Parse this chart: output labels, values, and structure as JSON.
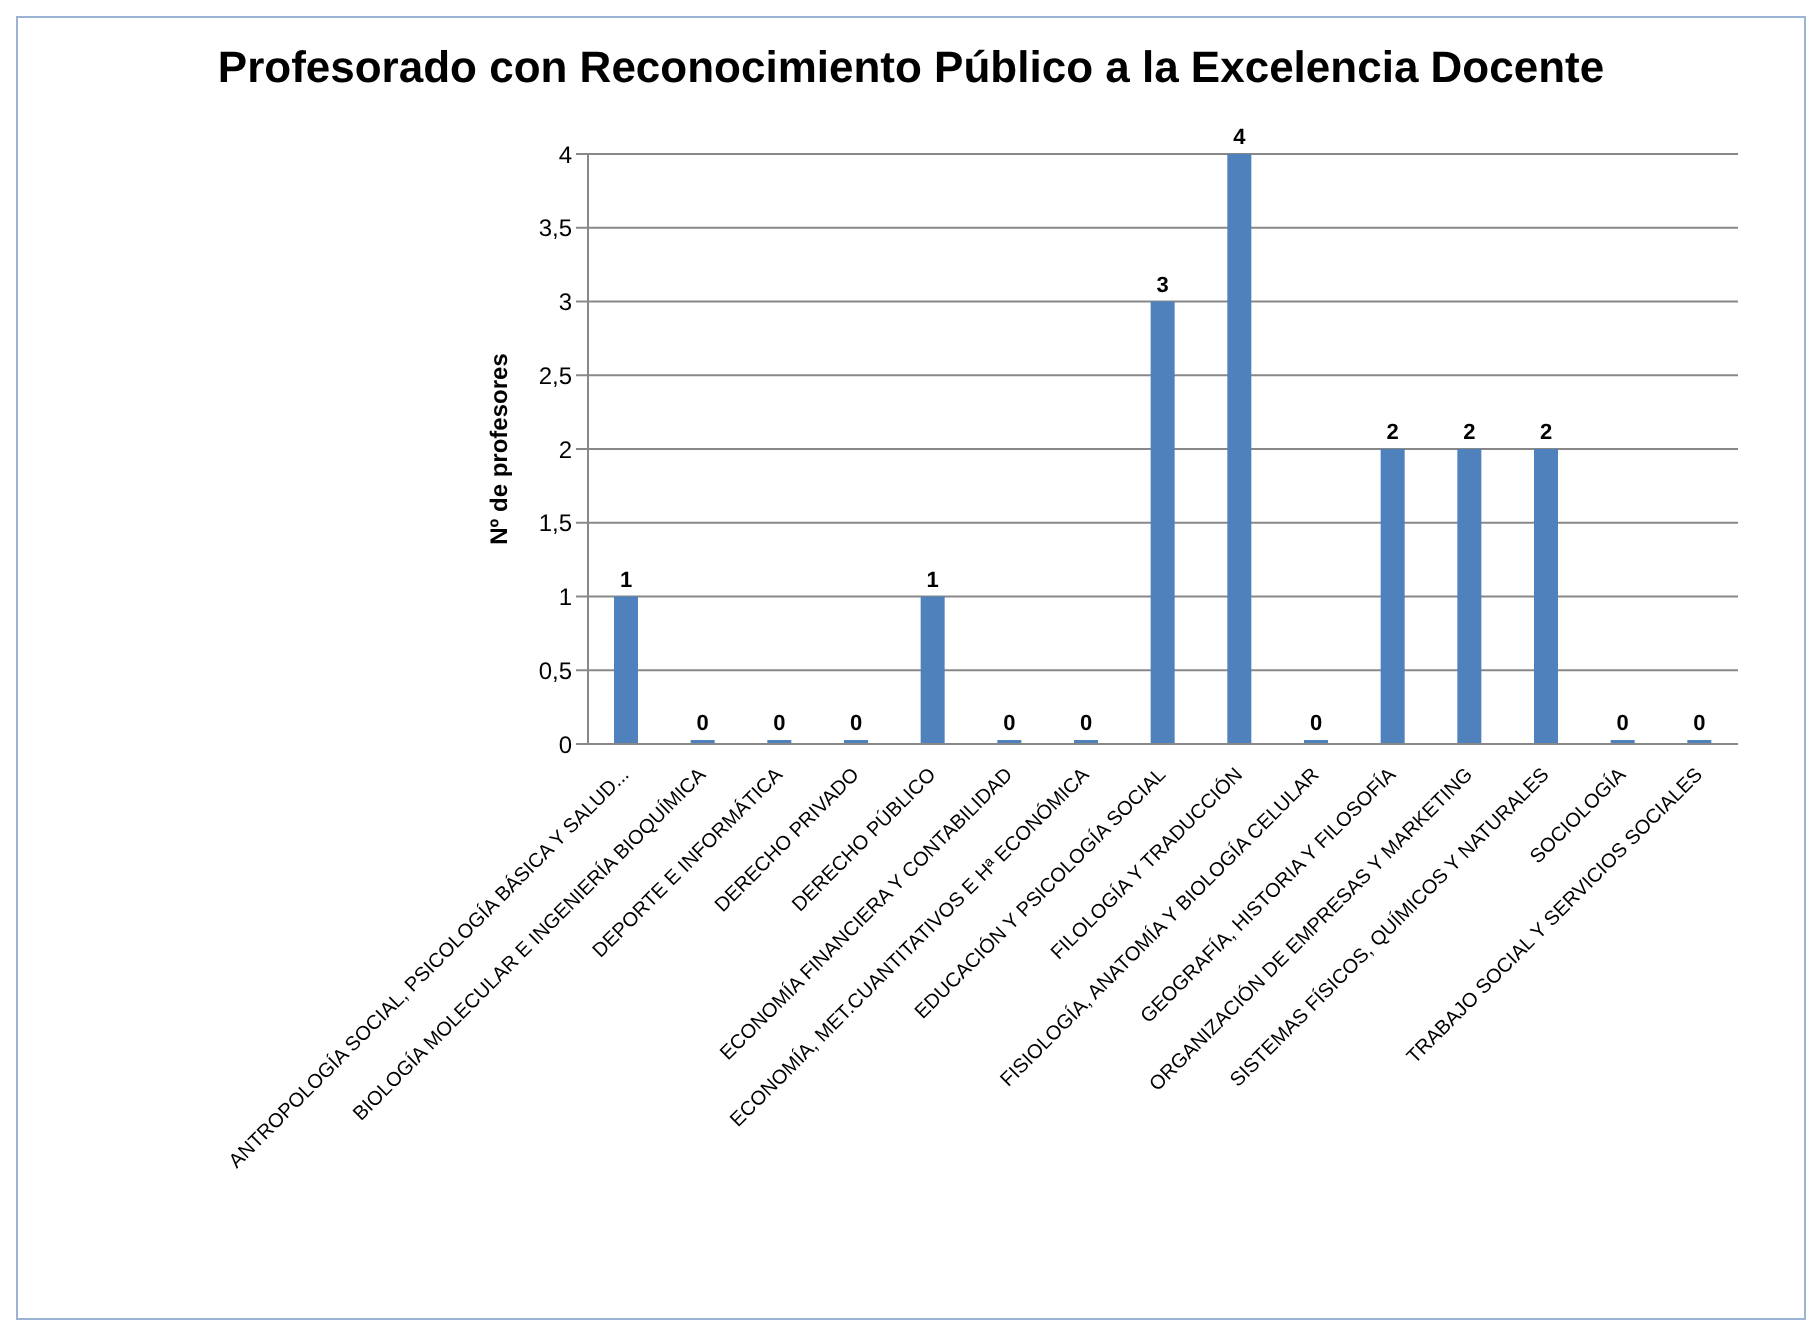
{
  "chart_data": {
    "type": "bar",
    "title": "Profesorado con Reconocimiento Público a la Excelencia Docente",
    "ylabel": "Nº de profesores",
    "categories": [
      "ANTROPOLOGÍA SOCIAL, PSICOLOGÍA BÁSICA Y SALUD...",
      "BIOLOGÍA MOLECULAR E INGENIERÍA BIOQUÍMICA",
      "DEPORTE E INFORMÁTICA",
      "DERECHO PRIVADO",
      "DERECHO PÚBLICO",
      "ECONOMÍA FINANCIERA Y CONTABILIDAD",
      "ECONOMÍA, MET.CUANTITATIVOS E Hª ECONÓMICA",
      "EDUCACIÓN Y PSICOLOGÍA SOCIAL",
      "FILOLOGÍA Y TRADUCCIÓN",
      "FISIOLOGÍA, ANATOMÍA Y BIOLOGÍA CELULAR",
      "GEOGRAFÍA, HISTORIA Y FILOSOFÍA",
      "ORGANIZACIÓN DE EMPRESAS Y MARKETING",
      "SISTEMAS FÍSICOS, QUÍMICOS Y NATURALES",
      "SOCIOLOGÍA",
      "TRABAJO SOCIAL Y SERVICIOS SOCIALES"
    ],
    "values": [
      1,
      0,
      0,
      0,
      1,
      0,
      0,
      3,
      4,
      0,
      2,
      2,
      2,
      0,
      0
    ],
    "color": "#4f81bd",
    "ylim": [
      0,
      4
    ],
    "yticks": [
      0,
      {
        "value": 0.5,
        "label": "0,5"
      },
      1,
      {
        "value": 1.5,
        "label": "1,5"
      },
      2,
      {
        "value": 2.5,
        "label": "2,5"
      },
      3,
      {
        "value": 3.5,
        "label": "3,5"
      },
      4
    ],
    "grid": "y",
    "data_labels": true,
    "legend": false
  }
}
